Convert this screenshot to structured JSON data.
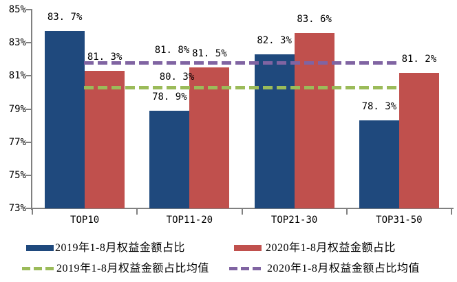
{
  "chart_data": {
    "type": "bar",
    "title": "",
    "categories": [
      "TOP10",
      "TOP11-20",
      "TOP21-30",
      "TOP31-50"
    ],
    "series": [
      {
        "name": "2019年1-8月权益金额占比",
        "color": "#1F497D",
        "values": [
          83.7,
          78.9,
          82.3,
          78.3
        ],
        "labels": [
          "83. 7%",
          "78. 9%",
          "82. 3%",
          "78. 3%"
        ]
      },
      {
        "name": "2020年1-8月权益金额占比",
        "color": "#C0504D",
        "values": [
          81.3,
          81.5,
          83.6,
          81.2
        ],
        "labels": [
          "81. 3%",
          "81. 5%",
          "83. 6%",
          "81. 2%"
        ]
      }
    ],
    "mean_lines": [
      {
        "name": "2019年1-8月权益金额占比均值",
        "color": "#9BBB59",
        "value": 80.3,
        "label": "80. 3%"
      },
      {
        "name": "2020年1-8月权益金额占比均值",
        "color": "#8064A2",
        "value": 81.8,
        "label": "81. 8%"
      }
    ],
    "ylim": [
      73,
      85
    ],
    "yticks": [
      73,
      75,
      77,
      79,
      81,
      83,
      85
    ],
    "ytick_labels": [
      "73%",
      "75%",
      "77%",
      "79%",
      "81%",
      "83%",
      "85%"
    ],
    "grid": false,
    "legend_position": "bottom",
    "axis_color": "#808080",
    "label_color": "#000000",
    "background": "#FFFFFF"
  }
}
